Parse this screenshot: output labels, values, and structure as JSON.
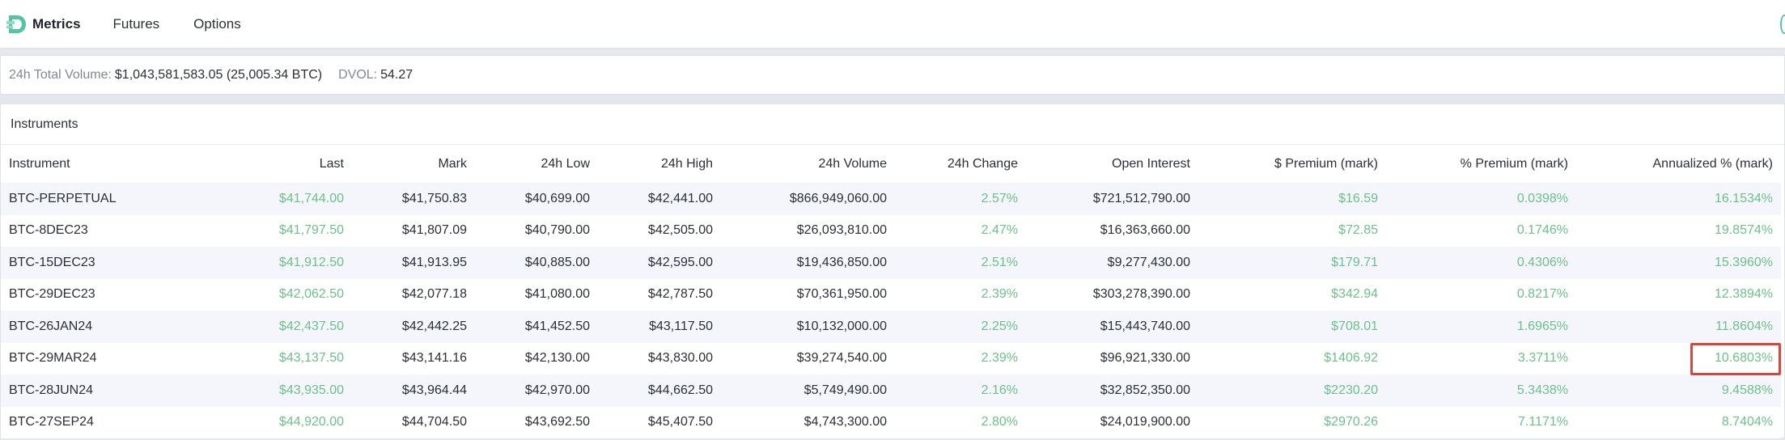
{
  "header": {
    "brand": "Metrics",
    "nav": [
      "Futures",
      "Options"
    ]
  },
  "stats": {
    "volume_label": "24h Total Volume:",
    "volume_value": "$1,043,581,583.05 (25,005.34 BTC)",
    "dvol_label": "DVOL:",
    "dvol_value": "54.27"
  },
  "instruments": {
    "title": "Instruments",
    "columns": [
      "Instrument",
      "Last",
      "Mark",
      "24h Low",
      "24h High",
      "24h Volume",
      "24h Change",
      "Open Interest",
      "$ Premium (mark)",
      "% Premium (mark)",
      "Annualized % (mark)"
    ],
    "rows": [
      [
        "BTC-PERPETUAL",
        "$41,744.00",
        "$41,750.83",
        "$40,699.00",
        "$42,441.00",
        "$866,949,060.00",
        "2.57%",
        "$721,512,790.00",
        "$16.59",
        "0.0398%",
        "16.1534%"
      ],
      [
        "BTC-8DEC23",
        "$41,797.50",
        "$41,807.09",
        "$40,790.00",
        "$42,505.00",
        "$26,093,810.00",
        "2.47%",
        "$16,363,660.00",
        "$72.85",
        "0.1746%",
        "19.8574%"
      ],
      [
        "BTC-15DEC23",
        "$41,912.50",
        "$41,913.95",
        "$40,885.00",
        "$42,595.00",
        "$19,436,850.00",
        "2.51%",
        "$9,277,430.00",
        "$179.71",
        "0.4306%",
        "15.3960%"
      ],
      [
        "BTC-29DEC23",
        "$42,062.50",
        "$42,077.18",
        "$41,080.00",
        "$42,787.50",
        "$70,361,950.00",
        "2.39%",
        "$303,278,390.00",
        "$342.94",
        "0.8217%",
        "12.3894%"
      ],
      [
        "BTC-26JAN24",
        "$42,437.50",
        "$42,442.25",
        "$41,452.50",
        "$43,117.50",
        "$10,132,000.00",
        "2.25%",
        "$15,443,740.00",
        "$708.01",
        "1.6965%",
        "11.8604%"
      ],
      [
        "BTC-29MAR24",
        "$43,137.50",
        "$43,141.16",
        "$42,130.00",
        "$43,830.00",
        "$39,274,540.00",
        "2.39%",
        "$96,921,330.00",
        "$1406.92",
        "3.3711%",
        "10.6803%"
      ],
      [
        "BTC-28JUN24",
        "$43,935.00",
        "$43,964.44",
        "$42,970.00",
        "$44,662.50",
        "$5,749,490.00",
        "2.16%",
        "$32,852,350.00",
        "$2230.20",
        "5.3438%",
        "9.4588%"
      ],
      [
        "BTC-27SEP24",
        "$44,920.00",
        "$44,704.50",
        "$43,692.50",
        "$45,407.50",
        "$4,743,300.00",
        "2.80%",
        "$24,019,900.00",
        "$2970.26",
        "7.1171%",
        "8.7404%"
      ]
    ],
    "highlighted": {
      "row": 5,
      "col": 10,
      "color": "#d6473b"
    }
  },
  "colors": {
    "positive": "#6cc08b",
    "brand": "#55c4a0"
  }
}
